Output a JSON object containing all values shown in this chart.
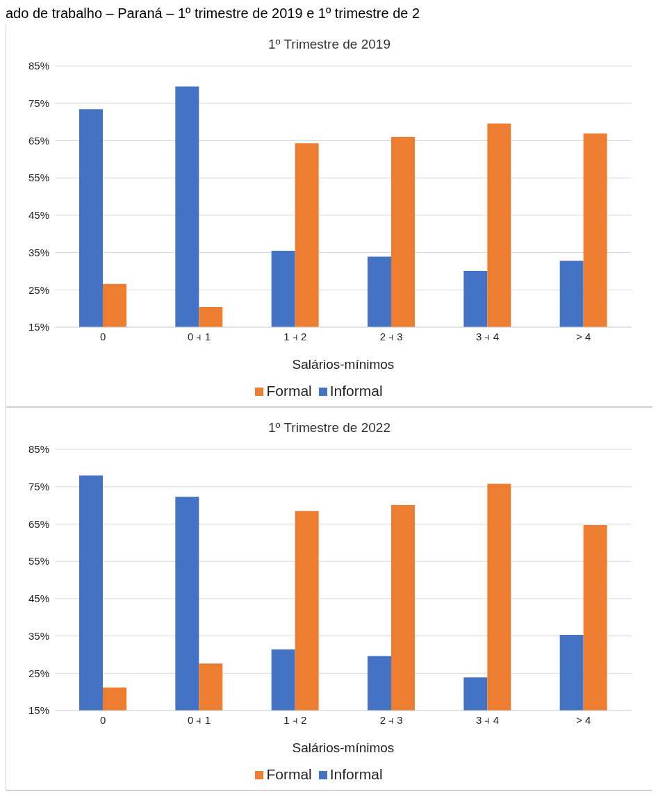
{
  "chart_data": [
    {
      "type": "bar",
      "title": "1º Trimestre de 2019",
      "xlabel": "Salários-mínimos",
      "categories": [
        "0",
        "0 ⫞ 1",
        "1 ⫞ 2",
        "2 ⫞ 3",
        "3 ⫞ 4",
        "> 4"
      ],
      "series": [
        {
          "name": "Informal",
          "color": "#4472c4",
          "values": [
            73.4,
            79.5,
            35.5,
            33.9,
            30.1,
            32.8
          ]
        },
        {
          "name": "Formal",
          "color": "#ed7d31",
          "values": [
            26.6,
            20.4,
            64.3,
            66.0,
            69.6,
            66.9
          ]
        }
      ],
      "ylim": [
        15,
        85
      ],
      "yticks": [
        {
          "value": 15,
          "label": "15%"
        },
        {
          "value": 25,
          "label": "25%"
        },
        {
          "value": 35,
          "label": "35%"
        },
        {
          "value": 45,
          "label": "45%"
        },
        {
          "value": 55,
          "label": "55%"
        },
        {
          "value": 65,
          "label": "65%"
        },
        {
          "value": 75,
          "label": "75%"
        },
        {
          "value": 85,
          "label": "85%"
        }
      ],
      "grid": "y",
      "legend": "bottom",
      "annotations": [
        "ado de trabalho – Paraná – 1º trimestre de 2019 e 1º trimestre de 2"
      ]
    },
    {
      "type": "bar",
      "title": "1º Trimestre de 2022",
      "xlabel": "Salários-mínimos",
      "categories": [
        "0",
        "0 ⫞ 1",
        "1 ⫞ 2",
        "2 ⫞ 3",
        "3 ⫞ 4",
        "> 4"
      ],
      "series": [
        {
          "name": "Informal",
          "color": "#4472c4",
          "values": [
            78.0,
            72.3,
            31.4,
            29.6,
            23.9,
            35.3
          ]
        },
        {
          "name": "Formal",
          "color": "#ed7d31",
          "values": [
            21.2,
            27.6,
            68.5,
            70.1,
            75.8,
            64.7
          ]
        }
      ],
      "ylim": [
        15,
        85
      ],
      "yticks": [
        {
          "value": 15,
          "label": "15%"
        },
        {
          "value": 25,
          "label": "25%"
        },
        {
          "value": 35,
          "label": "35%"
        },
        {
          "value": 45,
          "label": "45%"
        },
        {
          "value": 55,
          "label": "55%"
        },
        {
          "value": 65,
          "label": "65%"
        },
        {
          "value": 75,
          "label": "75%"
        },
        {
          "value": 85,
          "label": "85%"
        }
      ],
      "grid": "y",
      "legend": "bottom"
    }
  ]
}
